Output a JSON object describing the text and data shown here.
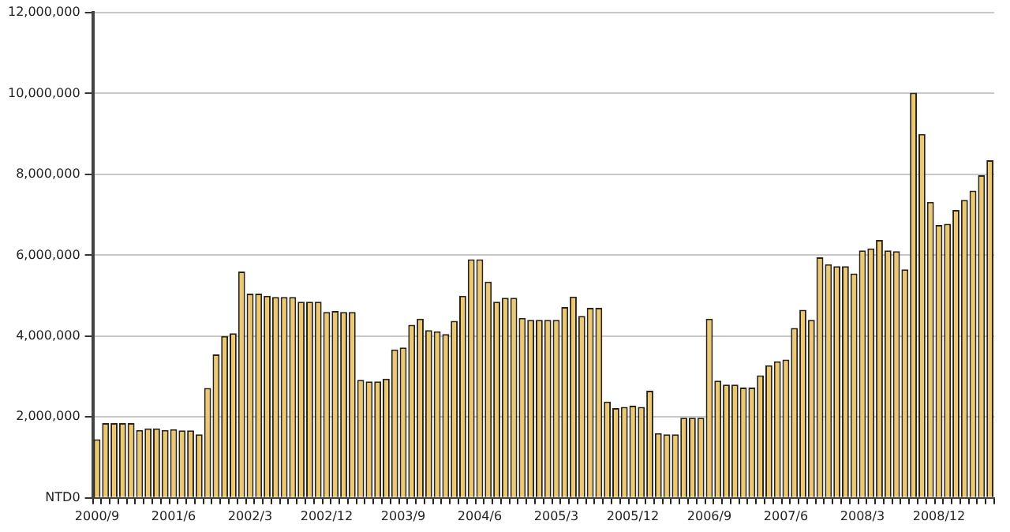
{
  "chart_data": {
    "type": "bar",
    "categories": [
      "2000/9",
      null,
      null,
      null,
      null,
      null,
      null,
      null,
      null,
      "2001/6",
      null,
      null,
      null,
      null,
      null,
      null,
      null,
      null,
      "2002/3",
      null,
      null,
      null,
      null,
      null,
      null,
      null,
      null,
      "2002/12",
      null,
      null,
      null,
      null,
      null,
      null,
      null,
      null,
      "2003/9",
      null,
      null,
      null,
      null,
      null,
      null,
      null,
      null,
      "2004/6",
      null,
      null,
      null,
      null,
      null,
      null,
      null,
      null,
      "2005/3",
      null,
      null,
      null,
      null,
      null,
      null,
      null,
      null,
      "2005/12",
      null,
      null,
      null,
      null,
      null,
      null,
      null,
      null,
      "2006/9",
      null,
      null,
      null,
      null,
      null,
      null,
      null,
      null,
      "2007/6",
      null,
      null,
      null,
      null,
      null,
      null,
      null,
      null,
      "2008/3",
      null,
      null,
      null,
      null,
      null,
      null,
      null,
      null,
      "2008/12",
      null,
      null,
      null,
      null,
      null,
      null
    ],
    "values": [
      1450000,
      1850000,
      1850000,
      1850000,
      1850000,
      1680000,
      1720000,
      1720000,
      1680000,
      1700000,
      1670000,
      1670000,
      1570000,
      2720000,
      3550000,
      4000000,
      4070000,
      5600000,
      5050000,
      5050000,
      5000000,
      4970000,
      4970000,
      4970000,
      4850000,
      4850000,
      4850000,
      4600000,
      4620000,
      4600000,
      4600000,
      2920000,
      2880000,
      2880000,
      2950000,
      3670000,
      3720000,
      4280000,
      4430000,
      4150000,
      4120000,
      4050000,
      4380000,
      5000000,
      5900000,
      5900000,
      5350000,
      4850000,
      4950000,
      4950000,
      4450000,
      4400000,
      4400000,
      4400000,
      4400000,
      4720000,
      4980000,
      4500000,
      4700000,
      4700000,
      2380000,
      2220000,
      2250000,
      2280000,
      2250000,
      2650000,
      1600000,
      1570000,
      1570000,
      1980000,
      1980000,
      1980000,
      4430000,
      2900000,
      2800000,
      2800000,
      2730000,
      2730000,
      3030000,
      3280000,
      3380000,
      3420000,
      4200000,
      4650000,
      4400000,
      5950000,
      5780000,
      5730000,
      5730000,
      5550000,
      6120000,
      6170000,
      6380000,
      6120000,
      6100000,
      5650000,
      10020000,
      9000000,
      7320000,
      6750000,
      6780000,
      7120000,
      7370000,
      7600000,
      7980000,
      8350000
    ],
    "color": "#ecc870",
    "ylim": [
      0,
      12000000
    ],
    "yticks": [
      {
        "value": 0,
        "label": "NTD0"
      },
      {
        "value": 2000000,
        "label": "2,000,000"
      },
      {
        "value": 4000000,
        "label": "4,000,000"
      },
      {
        "value": 6000000,
        "label": "6,000,000"
      },
      {
        "value": 8000000,
        "label": "8,000,000"
      },
      {
        "value": 10000000,
        "label": "10,000,000"
      },
      {
        "value": 12000000,
        "label": "12,000,000"
      }
    ],
    "grid": "y"
  }
}
